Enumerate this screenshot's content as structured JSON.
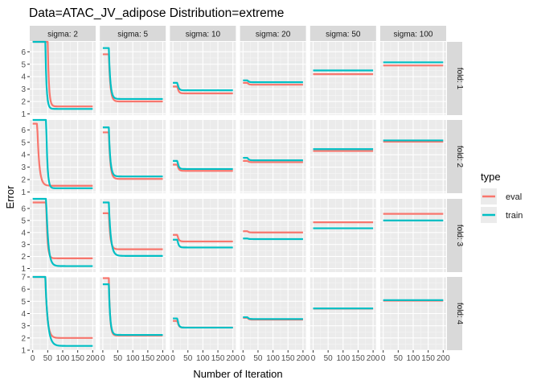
{
  "chart_data": {
    "type": "line",
    "facet_type": "grid",
    "title": "Data=ATAC_JV_adipose   Distribution=extreme",
    "xlabel": "Number of Iteration",
    "ylabel": "Error",
    "col_strip": [
      "sigma: 2",
      "sigma: 5",
      "sigma: 10",
      "sigma: 20",
      "sigma: 50",
      "sigma: 100"
    ],
    "row_strip": [
      "fold: 1",
      "fold: 2",
      "fold: 3",
      "fold: 4"
    ],
    "xlim": [
      0,
      200
    ],
    "x_ticks": [
      0,
      50,
      100,
      150,
      200
    ],
    "x_tick_labels": [
      "0",
      "50",
      "100",
      "150",
      "200"
    ],
    "grid": true,
    "legend_position": "right",
    "legend_title": "type",
    "legend": [
      {
        "name": "eval",
        "color": "#F8766D"
      },
      {
        "name": "train",
        "color": "#00BFC4"
      }
    ],
    "rows": [
      {
        "ylim": [
          0.9,
          6.8
        ],
        "y_ticks": [
          1,
          2,
          3,
          4,
          5,
          6
        ],
        "y_tick_labels": [
          "1",
          "2",
          "3",
          "4",
          "5",
          "6"
        ],
        "panels": [
          {
            "eval": {
              "start": 6.8,
              "end": 1.6,
              "rate": 0.25,
              "x0": 50
            },
            "train": {
              "start": 6.8,
              "end": 1.4,
              "rate": 0.25,
              "x0": 42
            }
          },
          {
            "eval": {
              "start": 5.8,
              "end": 2.0,
              "rate": 0.2,
              "x0": 20
            },
            "train": {
              "start": 6.3,
              "end": 2.2,
              "rate": 0.2,
              "x0": 20
            }
          },
          {
            "eval": {
              "start": 3.2,
              "end": 2.65,
              "rate": 0.25,
              "x0": 15
            },
            "train": {
              "start": 3.5,
              "end": 2.9,
              "rate": 0.25,
              "x0": 15
            }
          },
          {
            "eval": {
              "start": 3.5,
              "end": 3.35,
              "rate": 0.25,
              "x0": 15
            },
            "train": {
              "start": 3.7,
              "end": 3.55,
              "rate": 0.25,
              "x0": 15
            }
          },
          {
            "eval": {
              "start": 4.2,
              "end": 4.2,
              "rate": 0.25,
              "x0": 15
            },
            "train": {
              "start": 4.5,
              "end": 4.5,
              "rate": 0.25,
              "x0": 15
            }
          },
          {
            "eval": {
              "start": 4.9,
              "end": 4.9,
              "rate": 0.25,
              "x0": 15
            },
            "train": {
              "start": 5.15,
              "end": 5.15,
              "rate": 0.25,
              "x0": 15
            }
          }
        ]
      },
      {
        "ylim": [
          0.9,
          6.8
        ],
        "y_ticks": [
          1,
          2,
          3,
          4,
          5,
          6
        ],
        "y_tick_labels": [
          "1",
          "2",
          "3",
          "4",
          "5",
          "6"
        ],
        "panels": [
          {
            "eval": {
              "start": 6.5,
              "end": 1.5,
              "rate": 0.15,
              "x0": 15
            },
            "train": {
              "start": 6.8,
              "end": 1.3,
              "rate": 0.25,
              "x0": 45
            }
          },
          {
            "eval": {
              "start": 5.8,
              "end": 2.05,
              "rate": 0.2,
              "x0": 20
            },
            "train": {
              "start": 6.2,
              "end": 2.25,
              "rate": 0.2,
              "x0": 20
            }
          },
          {
            "eval": {
              "start": 3.2,
              "end": 2.7,
              "rate": 0.25,
              "x0": 15
            },
            "train": {
              "start": 3.5,
              "end": 2.85,
              "rate": 0.25,
              "x0": 15
            }
          },
          {
            "eval": {
              "start": 3.5,
              "end": 3.4,
              "rate": 0.25,
              "x0": 15
            },
            "train": {
              "start": 3.75,
              "end": 3.55,
              "rate": 0.25,
              "x0": 15
            }
          },
          {
            "eval": {
              "start": 4.3,
              "end": 4.3,
              "rate": 0.25,
              "x0": 15
            },
            "train": {
              "start": 4.45,
              "end": 4.45,
              "rate": 0.25,
              "x0": 15
            }
          },
          {
            "eval": {
              "start": 5.05,
              "end": 5.05,
              "rate": 0.25,
              "x0": 15
            },
            "train": {
              "start": 5.15,
              "end": 5.15,
              "rate": 0.25,
              "x0": 15
            }
          }
        ]
      },
      {
        "ylim": [
          0.7,
          6.8
        ],
        "y_ticks": [
          1,
          2,
          3,
          4,
          5,
          6
        ],
        "y_tick_labels": [
          "1",
          "2",
          "3",
          "4",
          "5",
          "6"
        ],
        "panels": [
          {
            "eval": {
              "start": 6.5,
              "end": 1.85,
              "rate": 0.25,
              "x0": 45
            },
            "train": {
              "start": 6.8,
              "end": 1.2,
              "rate": 0.15,
              "x0": 45
            }
          },
          {
            "eval": {
              "start": 5.6,
              "end": 2.6,
              "rate": 0.2,
              "x0": 20
            },
            "train": {
              "start": 6.5,
              "end": 2.05,
              "rate": 0.15,
              "x0": 20
            }
          },
          {
            "eval": {
              "start": 3.8,
              "end": 3.25,
              "rate": 0.25,
              "x0": 15
            },
            "train": {
              "start": 3.4,
              "end": 2.75,
              "rate": 0.25,
              "x0": 15
            }
          },
          {
            "eval": {
              "start": 4.1,
              "end": 4.0,
              "rate": 0.25,
              "x0": 15
            },
            "train": {
              "start": 3.5,
              "end": 3.45,
              "rate": 0.25,
              "x0": 15
            }
          },
          {
            "eval": {
              "start": 4.85,
              "end": 4.85,
              "rate": 0.25,
              "x0": 15
            },
            "train": {
              "start": 4.35,
              "end": 4.35,
              "rate": 0.25,
              "x0": 15
            }
          },
          {
            "eval": {
              "start": 5.55,
              "end": 5.55,
              "rate": 0.25,
              "x0": 15
            },
            "train": {
              "start": 5.0,
              "end": 5.0,
              "rate": 0.25,
              "x0": 15
            }
          }
        ]
      },
      {
        "ylim": [
          1.0,
          7.0
        ],
        "y_ticks": [
          1,
          2,
          3,
          4,
          5,
          6,
          7
        ],
        "y_tick_labels": [
          "1",
          "2",
          "3",
          "4",
          "5",
          "6",
          "7"
        ],
        "panels": [
          {
            "eval": {
              "start": 7.0,
              "end": 2.0,
              "rate": 0.15,
              "x0": 42
            },
            "train": {
              "start": 7.0,
              "end": 1.35,
              "rate": 0.12,
              "x0": 42
            }
          },
          {
            "eval": {
              "start": 6.9,
              "end": 2.2,
              "rate": 0.25,
              "x0": 20
            },
            "train": {
              "start": 6.4,
              "end": 2.25,
              "rate": 0.22,
              "x0": 20
            }
          },
          {
            "eval": {
              "start": 3.4,
              "end": 2.85,
              "rate": 0.25,
              "x0": 15
            },
            "train": {
              "start": 3.6,
              "end": 2.85,
              "rate": 0.25,
              "x0": 15
            }
          },
          {
            "eval": {
              "start": 3.65,
              "end": 3.5,
              "rate": 0.25,
              "x0": 15
            },
            "train": {
              "start": 3.7,
              "end": 3.55,
              "rate": 0.25,
              "x0": 15
            }
          },
          {
            "eval": {
              "start": 4.4,
              "end": 4.4,
              "rate": 0.25,
              "x0": 15
            },
            "train": {
              "start": 4.42,
              "end": 4.42,
              "rate": 0.25,
              "x0": 15
            }
          },
          {
            "eval": {
              "start": 5.05,
              "end": 5.05,
              "rate": 0.25,
              "x0": 15
            },
            "train": {
              "start": 5.1,
              "end": 5.1,
              "rate": 0.25,
              "x0": 15
            }
          }
        ]
      }
    ]
  }
}
